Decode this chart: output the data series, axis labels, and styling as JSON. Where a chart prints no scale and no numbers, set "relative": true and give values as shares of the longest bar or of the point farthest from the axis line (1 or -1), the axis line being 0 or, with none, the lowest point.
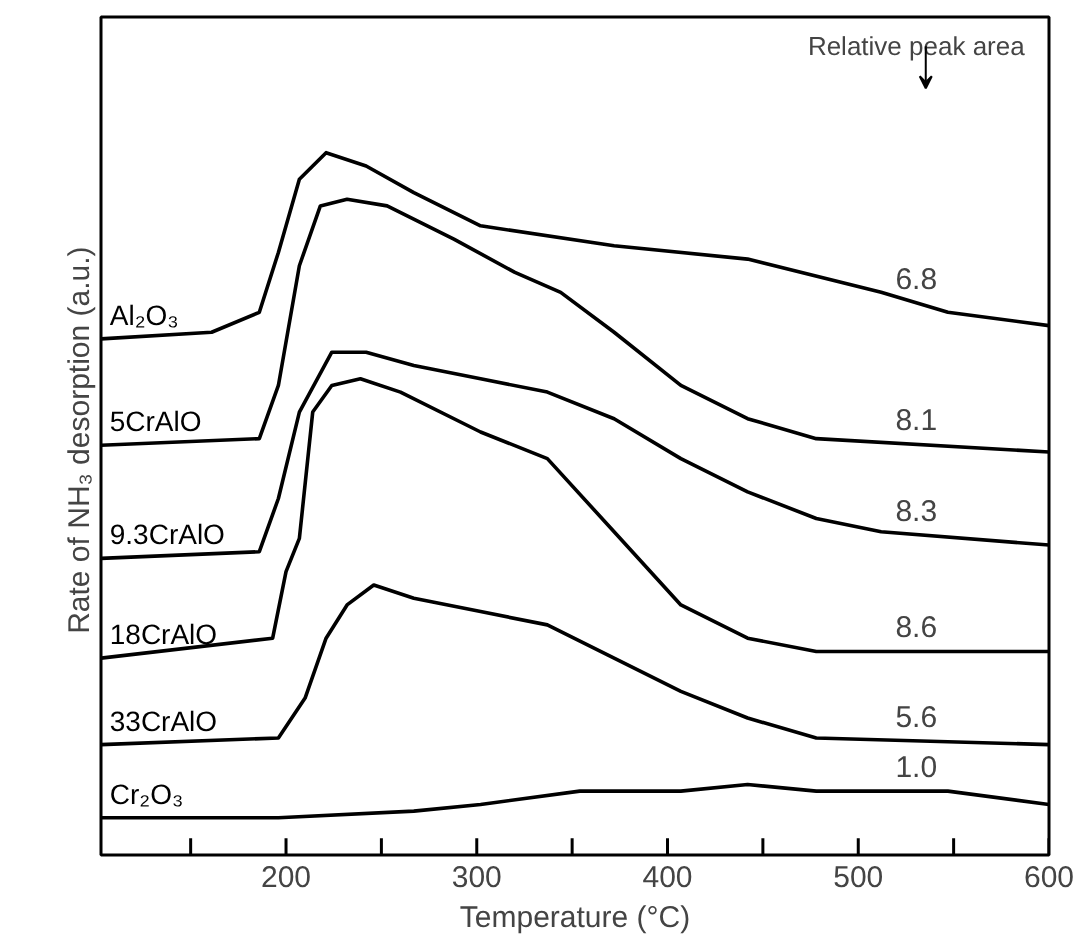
{
  "chart_data": {
    "type": "line",
    "relative": true,
    "xlabel": "Temperature (°C)",
    "ylabel": "Rate of  NH₃ desorption (a.u.)",
    "xlim": [
      103,
      600
    ],
    "xticks": [
      {
        "value": 150,
        "label": null
      },
      200,
      {
        "value": 250,
        "label": null
      },
      300,
      {
        "value": 350,
        "label": null
      },
      400,
      {
        "value": 450,
        "label": null
      },
      500,
      {
        "value": 550,
        "label": null
      },
      600
    ],
    "tick_labels": "x",
    "grid": false,
    "marker": "none",
    "line_style": "solid",
    "series": [
      {
        "name": "Al₂O₃",
        "color": "#000000",
        "x": [
          103,
          161,
          186,
          196,
          207,
          221,
          242,
          267,
          302,
          372,
          442,
          512,
          547,
          600
        ],
        "values": [
          0.72,
          0.73,
          0.76,
          0.85,
          0.96,
          1.0,
          0.98,
          0.94,
          0.89,
          0.86,
          0.84,
          0.79,
          0.76,
          0.74
        ]
      },
      {
        "name": "5CrAlO",
        "color": "#000000",
        "x": [
          103,
          186,
          196,
          207,
          218,
          232,
          253,
          288,
          320,
          344,
          372,
          407,
          442,
          478,
          600
        ],
        "values": [
          0.56,
          0.57,
          0.65,
          0.83,
          0.92,
          0.93,
          0.92,
          0.87,
          0.82,
          0.79,
          0.73,
          0.65,
          0.6,
          0.57,
          0.55
        ]
      },
      {
        "name": "9.3CrAlO",
        "color": "#000000",
        "x": [
          103,
          186,
          196,
          207,
          224,
          242,
          267,
          302,
          337,
          372,
          407,
          442,
          478,
          512,
          600
        ],
        "values": [
          0.39,
          0.4,
          0.48,
          0.61,
          0.7,
          0.7,
          0.68,
          0.66,
          0.64,
          0.6,
          0.54,
          0.49,
          0.45,
          0.43,
          0.41
        ]
      },
      {
        "name": "18CrAlO",
        "color": "#000000",
        "x": [
          103,
          193,
          200,
          207,
          214,
          224,
          239,
          260,
          302,
          337,
          372,
          407,
          442,
          478,
          600
        ],
        "values": [
          0.24,
          0.27,
          0.37,
          0.42,
          0.61,
          0.65,
          0.66,
          0.64,
          0.58,
          0.54,
          0.43,
          0.32,
          0.27,
          0.25,
          0.25
        ]
      },
      {
        "name": "33CrAlO",
        "color": "#000000",
        "x": [
          103,
          196,
          210,
          221,
          232,
          246,
          267,
          302,
          337,
          372,
          407,
          442,
          478,
          600
        ],
        "values": [
          0.11,
          0.12,
          0.18,
          0.27,
          0.32,
          0.35,
          0.33,
          0.31,
          0.29,
          0.24,
          0.19,
          0.15,
          0.12,
          0.11
        ]
      },
      {
        "name": "Cr₂O₃",
        "color": "#000000",
        "x": [
          103,
          196,
          267,
          302,
          354,
          407,
          442,
          478,
          547,
          600
        ],
        "values": [
          0.0,
          0.0,
          0.01,
          0.02,
          0.04,
          0.04,
          0.05,
          0.04,
          0.04,
          0.02
        ]
      }
    ],
    "annotations": [
      "Relative peak area",
      "6.8",
      "8.1",
      "8.3",
      "8.6",
      "5.6",
      "1.0"
    ]
  }
}
